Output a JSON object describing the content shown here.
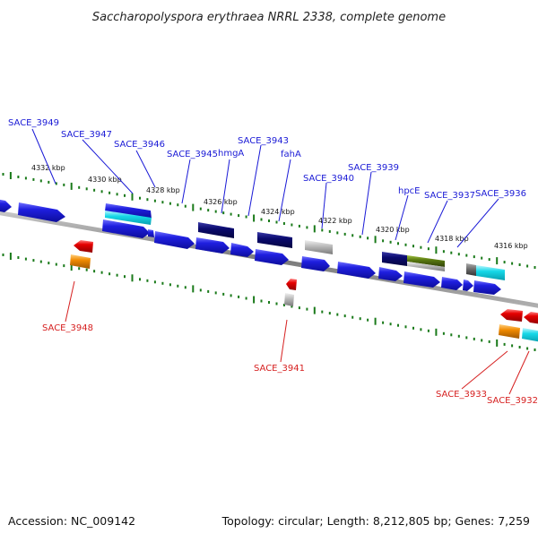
{
  "title": "Saccharopolyspora erythraea NRRL 2338, complete genome",
  "footer": {
    "accession": "Accession: NC_009142",
    "summary": "Topology: circular; Length: 8,212,805 bp; Genes: 7,259"
  },
  "colors": {
    "forward_gene": "#1f1fe0",
    "dark_gene": "#0a0a6e",
    "rna_cyan": "#16d8e8",
    "reverse_red": "#e60000",
    "orange": "#f08a00",
    "gray": "#b8b8b8",
    "olive": "#5a7a10",
    "backbone": "#808080",
    "tick": "#1a7a1a",
    "label_top": "#1a1ad6",
    "label_bottom": "#d62020"
  },
  "ticks": [
    "4332 kbp",
    "4330 kbp",
    "4328 kbp",
    "4326 kbp",
    "4324 kbp",
    "4322 kbp",
    "4320 kbp",
    "4318 kbp",
    "4316 kbp"
  ],
  "genes_top": [
    "SACE_3949",
    "SACE_3947",
    "SACE_3946",
    "SACE_3945",
    "hmgA",
    "SACE_3943",
    "fahA",
    "SACE_3940",
    "SACE_3939",
    "hpcE",
    "SACE_3937",
    "SACE_3936"
  ],
  "genes_bottom": [
    "SACE_3948",
    "SACE_3941",
    "SACE_3933",
    "SACE_3932"
  ]
}
